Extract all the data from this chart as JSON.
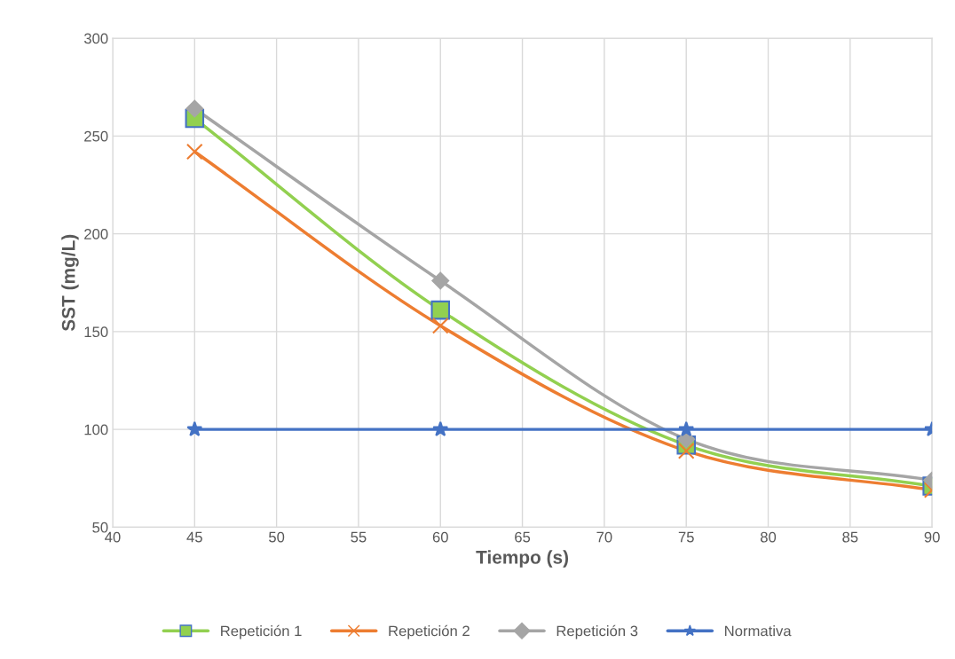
{
  "chart_data": {
    "type": "line",
    "xlabel": "Tiempo (s)",
    "ylabel": "SST (mg/L)",
    "x": [
      45,
      60,
      75,
      90
    ],
    "series": [
      {
        "name": "Repetición 1",
        "color": "#92d050",
        "marker": "square",
        "values": [
          259,
          161,
          92,
          71
        ]
      },
      {
        "name": "Repetición 2",
        "color": "#ed7d31",
        "marker": "cross",
        "values": [
          242,
          153,
          89,
          69
        ]
      },
      {
        "name": "Repetición 3",
        "color": "#a5a5a5",
        "marker": "diamond",
        "values": [
          264,
          176,
          95,
          74
        ]
      },
      {
        "name": "Normativa",
        "color": "#4472c4",
        "marker": "star",
        "values": [
          100,
          100,
          100,
          100
        ]
      }
    ],
    "xlim": [
      40,
      90
    ],
    "xticks": [
      40,
      45,
      50,
      55,
      60,
      65,
      70,
      75,
      80,
      85,
      90
    ],
    "ylim": [
      50,
      300
    ],
    "yticks": [
      50,
      100,
      150,
      200,
      250,
      300
    ],
    "grid": true,
    "legend": "bottom",
    "line_style": "solid"
  }
}
